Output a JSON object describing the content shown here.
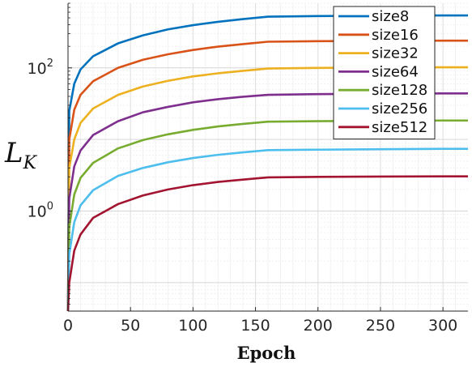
{
  "chart_data": {
    "type": "line",
    "title": "",
    "xlabel": "Epoch",
    "ylabel": "L",
    "ylabel_subscript": "K",
    "x_scale": "linear",
    "y_scale": "log",
    "xlim": [
      0,
      320
    ],
    "ylim": [
      0.04,
      800
    ],
    "xticks": [
      0,
      50,
      100,
      150,
      200,
      250,
      300
    ],
    "xtick_labels": [
      "0",
      "50",
      "100",
      "150",
      "200",
      "250",
      "300"
    ],
    "yticks": [
      1,
      100
    ],
    "ytick_labels": [
      {
        "base": "10",
        "exp": "0"
      },
      {
        "base": "10",
        "exp": "2"
      }
    ],
    "grid": true,
    "legend_position": "top-right",
    "x": [
      0,
      1,
      5,
      10,
      20,
      40,
      60,
      80,
      100,
      120,
      140,
      160,
      200,
      250,
      300,
      320
    ],
    "series": [
      {
        "name": "size8",
        "color": "#0072BD",
        "values": [
          0.04,
          25,
          60,
          95,
          145,
          220,
          285,
          345,
          395,
          440,
          480,
          520,
          530,
          536,
          540,
          540
        ]
      },
      {
        "name": "size16",
        "color": "#D95319",
        "values": [
          0.04,
          10,
          26,
          42,
          65,
          100,
          130,
          155,
          178,
          198,
          215,
          232,
          236,
          238,
          240,
          240
        ]
      },
      {
        "name": "size32",
        "color": "#EDB120",
        "values": [
          0.04,
          4,
          10,
          17,
          27,
          42,
          55,
          66,
          76,
          84,
          91,
          98,
          100,
          101,
          102,
          102
        ]
      },
      {
        "name": "size64",
        "color": "#7E2F8E",
        "values": [
          0.04,
          1.5,
          4.2,
          7,
          11.5,
          18,
          24,
          28.5,
          33,
          36.5,
          39.5,
          42,
          43,
          43.5,
          44,
          44
        ]
      },
      {
        "name": "size128",
        "color": "#77AC30",
        "values": [
          0.04,
          0.6,
          1.7,
          2.9,
          4.7,
          7.5,
          9.8,
          11.8,
          13.6,
          15.2,
          16.5,
          17.7,
          18,
          18.2,
          18.4,
          18.4
        ]
      },
      {
        "name": "size256",
        "color": "#4DBEEE",
        "values": [
          0.04,
          0.25,
          0.7,
          1.2,
          1.95,
          3.1,
          4.0,
          4.8,
          5.5,
          6.1,
          6.6,
          7.1,
          7.2,
          7.3,
          7.4,
          7.4
        ]
      },
      {
        "name": "size512",
        "color": "#A2142F",
        "values": [
          0.04,
          0.1,
          0.28,
          0.47,
          0.8,
          1.25,
          1.65,
          2.0,
          2.3,
          2.55,
          2.75,
          2.95,
          3.0,
          3.03,
          3.05,
          3.05
        ]
      }
    ]
  }
}
